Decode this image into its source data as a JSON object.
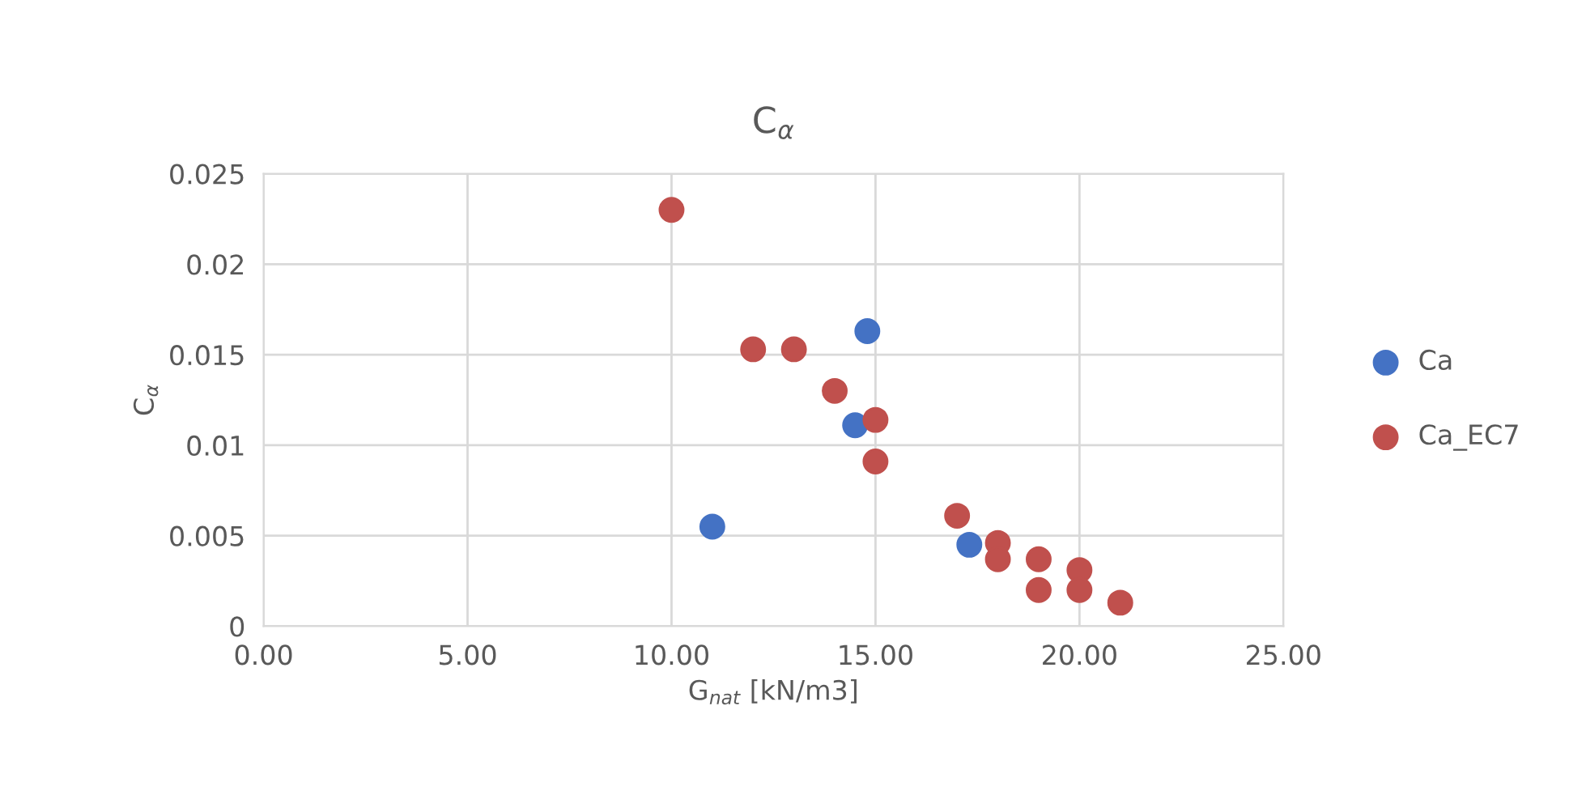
{
  "chart_data": {
    "type": "scatter",
    "title": "C$_{α}$",
    "xlabel": "G$_{nat}$ [kN/m3]",
    "ylabel": "C$_{α}$",
    "xlim": [
      0,
      25
    ],
    "xticks": [
      {
        "value": 0,
        "label": "0.00"
      },
      {
        "value": 5,
        "label": "5.00"
      },
      {
        "value": 10,
        "label": "10.00"
      },
      {
        "value": 15,
        "label": "15.00"
      },
      {
        "value": 20,
        "label": "20.00"
      },
      {
        "value": 25,
        "label": "25.00"
      }
    ],
    "ylim": [
      0,
      0.025
    ],
    "yticks": [
      0,
      0.005,
      0.01,
      0.015,
      0.02,
      0.025
    ],
    "grid": true,
    "legend": "right",
    "marker": "circle",
    "series": [
      {
        "name": "Ca",
        "color": "#4472c4",
        "x": [
          11.0,
          14.8,
          14.5,
          17.3
        ],
        "values": [
          0.0055,
          0.0163,
          0.0111,
          0.0045
        ]
      },
      {
        "name": "Ca_EC7",
        "color": "#c0504d",
        "x": [
          10,
          12,
          13,
          14,
          15,
          15,
          17,
          18,
          18,
          19,
          19,
          20,
          20,
          21
        ],
        "values": [
          0.023,
          0.0153,
          0.0153,
          0.013,
          0.0114,
          0.0091,
          0.0061,
          0.0046,
          0.0037,
          0.0037,
          0.002,
          0.0031,
          0.002,
          0.0013
        ]
      }
    ]
  }
}
